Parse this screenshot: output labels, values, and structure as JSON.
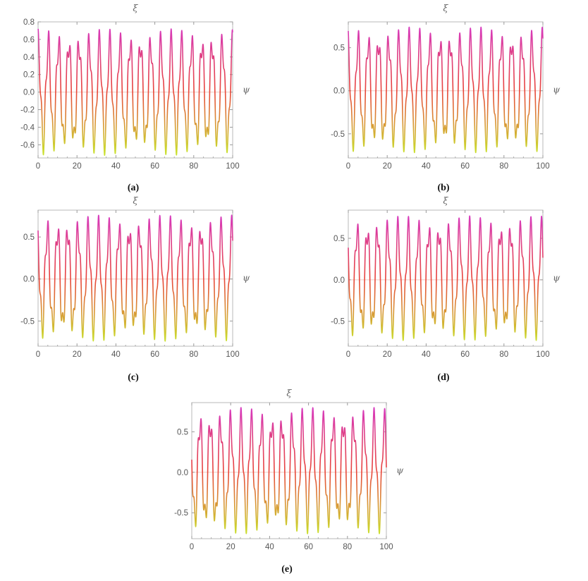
{
  "chart_data": [
    {
      "id": "a",
      "type": "line",
      "caption": "(a)",
      "xlabel": "ξ",
      "ylabel": "ψ",
      "xlim": [
        0,
        100
      ],
      "ylim": [
        -0.75,
        0.8
      ],
      "xticks": [
        0,
        20,
        40,
        60,
        80,
        100
      ],
      "xtick_labels": [
        "0",
        "20",
        "40",
        "60",
        "80",
        "100"
      ],
      "yticks": [
        0.8,
        0.6,
        0.4,
        0.2,
        0.0,
        -0.2,
        -0.4,
        -0.6
      ],
      "ytick_labels": [
        "0.8",
        "0.6",
        "0.4",
        "0.2",
        "0.0",
        "-0.2",
        "-0.4",
        "-0.6"
      ],
      "model": {
        "amp1": 0.56,
        "k1": 1.194,
        "amp2": 0.16,
        "k2": 3.4,
        "offset": 0.0,
        "phase": 0.0
      },
      "colors": {
        "top": "#d63ac9",
        "mid": "#e8433b",
        "bottom": "#c8ec2e"
      },
      "grid": false
    },
    {
      "id": "b",
      "type": "line",
      "caption": "(b)",
      "xlabel": "ξ",
      "ylabel": "ψ",
      "xlim": [
        0,
        100
      ],
      "ylim": [
        -0.78,
        0.8
      ],
      "xticks": [
        0,
        20,
        40,
        60,
        80,
        100
      ],
      "xtick_labels": [
        "0",
        "20",
        "40",
        "60",
        "80",
        "100"
      ],
      "yticks": [
        0.5,
        0.0,
        -0.5
      ],
      "ytick_labels": [
        "0.5",
        "0.0",
        "-0.5"
      ],
      "model": {
        "amp1": 0.57,
        "k1": 1.194,
        "amp2": 0.16,
        "k2": 3.4,
        "offset": 0.01,
        "phase": 0.3
      },
      "colors": {
        "top": "#d63ac9",
        "mid": "#e8433b",
        "bottom": "#c8ec2e"
      },
      "grid": false
    },
    {
      "id": "c",
      "type": "line",
      "caption": "(c)",
      "xlabel": "ξ",
      "ylabel": "ψ",
      "xlim": [
        0,
        100
      ],
      "ylim": [
        -0.8,
        0.82
      ],
      "xticks": [
        0,
        20,
        40,
        60,
        80,
        100
      ],
      "xtick_labels": [
        "0",
        "20",
        "40",
        "60",
        "80",
        "100"
      ],
      "yticks": [
        0.5,
        0.0,
        -0.5
      ],
      "ytick_labels": [
        "0.5",
        "0.0",
        "-0.5"
      ],
      "model": {
        "amp1": 0.58,
        "k1": 1.194,
        "amp2": 0.17,
        "k2": 3.4,
        "offset": 0.01,
        "phase": 0.6
      },
      "colors": {
        "top": "#d63ac9",
        "mid": "#e8433b",
        "bottom": "#c8ec2e"
      },
      "grid": false
    },
    {
      "id": "d",
      "type": "line",
      "caption": "(d)",
      "xlabel": "ξ",
      "ylabel": "ψ",
      "xlim": [
        0,
        100
      ],
      "ylim": [
        -0.8,
        0.84
      ],
      "xticks": [
        0,
        20,
        40,
        60,
        80,
        100
      ],
      "xtick_labels": [
        "0",
        "20",
        "40",
        "60",
        "80",
        "100"
      ],
      "yticks": [
        0.5,
        0.0,
        -0.5
      ],
      "ytick_labels": [
        "0.5",
        "0.0",
        "-0.5"
      ],
      "model": {
        "amp1": 0.58,
        "k1": 1.194,
        "amp2": 0.17,
        "k2": 3.4,
        "offset": 0.02,
        "phase": 0.9
      },
      "colors": {
        "top": "#d63ac9",
        "mid": "#e8433b",
        "bottom": "#c8ec2e"
      },
      "grid": false
    },
    {
      "id": "e",
      "type": "line",
      "caption": "(e)",
      "xlabel": "ξ",
      "ylabel": "ψ",
      "xlim": [
        0,
        100
      ],
      "ylim": [
        -0.82,
        0.86
      ],
      "xticks": [
        0,
        20,
        40,
        60,
        80,
        100
      ],
      "xtick_labels": [
        "0",
        "20",
        "40",
        "60",
        "80",
        "100"
      ],
      "yticks": [
        0.5,
        0.0,
        -0.5
      ],
      "ytick_labels": [
        "0.5",
        "0.0",
        "-0.5"
      ],
      "model": {
        "amp1": 0.6,
        "k1": 1.194,
        "amp2": 0.18,
        "k2": 3.4,
        "offset": 0.02,
        "phase": 1.2
      },
      "colors": {
        "top": "#d63ac9",
        "mid": "#e8433b",
        "bottom": "#c8ec2e"
      },
      "grid": false
    }
  ]
}
